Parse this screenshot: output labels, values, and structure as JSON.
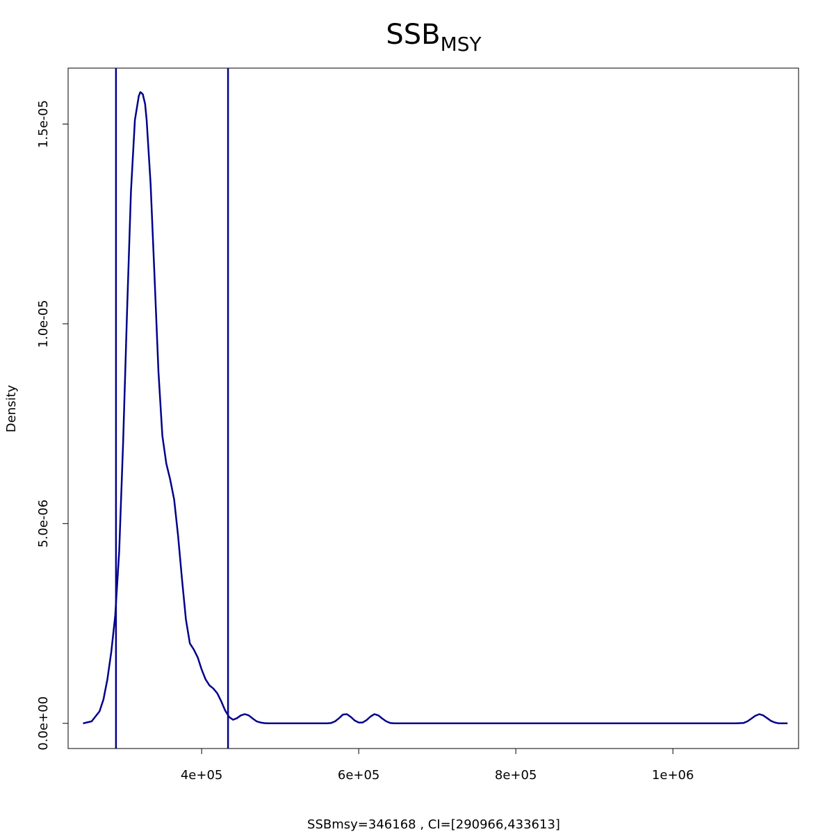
{
  "chart_data": {
    "type": "line",
    "title": "SSB",
    "title_subscript": "MSY",
    "xlabel": "SSBmsy=346168 , CI=[290966,433613]",
    "ylabel": "Density",
    "xlim": [
      230000,
      1160000
    ],
    "ylim": [
      -6.3e-07,
      1.64e-05
    ],
    "x_ticks": [
      {
        "value": 400000,
        "label": "4e+05"
      },
      {
        "value": 600000,
        "label": "6e+05"
      },
      {
        "value": 800000,
        "label": "8e+05"
      },
      {
        "value": 1000000,
        "label": "1e+06"
      }
    ],
    "y_ticks": [
      {
        "value": 0,
        "label": "0.0e+00"
      },
      {
        "value": 5e-06,
        "label": "5.0e-06"
      },
      {
        "value": 1e-05,
        "label": "1.0e-05"
      },
      {
        "value": 1.5e-05,
        "label": "1.5e-05"
      }
    ],
    "grid": false,
    "line_color": "#00008b",
    "vertical_lines": [
      290966,
      433613
    ],
    "series": [
      {
        "x": [
          249000,
          260000,
          270000,
          275000,
          280000,
          285000,
          290000,
          295000,
          300000,
          305000,
          310000,
          315000,
          320000,
          322000,
          325000,
          328000,
          330000,
          335000,
          340000,
          345000,
          350000,
          355000,
          360000,
          365000,
          370000,
          375000,
          380000,
          385000,
          390000,
          395000,
          400000,
          405000,
          410000,
          415000,
          420000,
          425000,
          430000,
          435000,
          440000,
          445000,
          450000,
          455000,
          460000,
          465000,
          470000,
          475000,
          480000,
          485000,
          490000,
          495000,
          500000,
          510000,
          520000,
          530000,
          540000,
          550000,
          560000,
          565000,
          570000,
          575000,
          580000,
          585000,
          590000,
          595000,
          600000,
          605000,
          610000,
          615000,
          620000,
          625000,
          630000,
          635000,
          640000,
          645000,
          650000,
          655000,
          660000,
          670000,
          700000,
          800000,
          900000,
          1000000,
          1050000,
          1080000,
          1090000,
          1095000,
          1100000,
          1105000,
          1110000,
          1115000,
          1120000,
          1125000,
          1130000,
          1135000,
          1140000,
          1146000
        ],
        "y": [
          0,
          5e-08,
          3e-07,
          6e-07,
          1.1e-06,
          1.8e-06,
          2.7e-06,
          4.3e-06,
          7e-06,
          1.03e-05,
          1.33e-05,
          1.51e-05,
          1.57e-05,
          1.58e-05,
          1.575e-05,
          1.55e-05,
          1.51e-05,
          1.35e-05,
          1.12e-05,
          8.8e-06,
          7.2e-06,
          6.5e-06,
          6.1e-06,
          5.6e-06,
          4.7e-06,
          3.6e-06,
          2.6e-06,
          2e-06,
          1.85e-06,
          1.65e-06,
          1.35e-06,
          1.1e-06,
          9.5e-07,
          8.7e-07,
          7.5e-07,
          5.5e-07,
          3.2e-07,
          1.6e-07,
          9e-08,
          1.3e-07,
          2e-07,
          2.3e-07,
          2e-07,
          1.2e-07,
          5e-08,
          2e-08,
          5e-09,
          0,
          0,
          0,
          0,
          0,
          0,
          0,
          0,
          0,
          0,
          1e-08,
          5e-08,
          1.3e-07,
          2.2e-07,
          2.3e-07,
          1.6e-07,
          7e-08,
          2e-08,
          2e-08,
          8e-08,
          1.7e-07,
          2.3e-07,
          2e-07,
          1.2e-07,
          5e-08,
          1e-08,
          0,
          0,
          0,
          0,
          0,
          0,
          0,
          0,
          0,
          0,
          0,
          1e-08,
          5e-08,
          1.2e-07,
          1.9e-07,
          2.3e-07,
          2e-07,
          1.3e-07,
          6e-08,
          2e-08,
          0,
          0,
          0
        ]
      }
    ]
  }
}
